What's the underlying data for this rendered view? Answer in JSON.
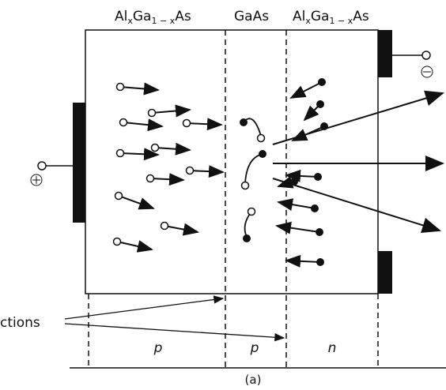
{
  "layers": {
    "left": {
      "parts": [
        "Al",
        "x",
        "Ga",
        "1 − x",
        "As"
      ]
    },
    "middle": "GaAs",
    "right": {
      "parts": [
        "Al",
        "x",
        "Ga",
        "1 − x",
        "As"
      ]
    }
  },
  "regions": [
    "p",
    "p",
    "n"
  ],
  "junctions_label": "ctions",
  "caption": "(a)"
}
